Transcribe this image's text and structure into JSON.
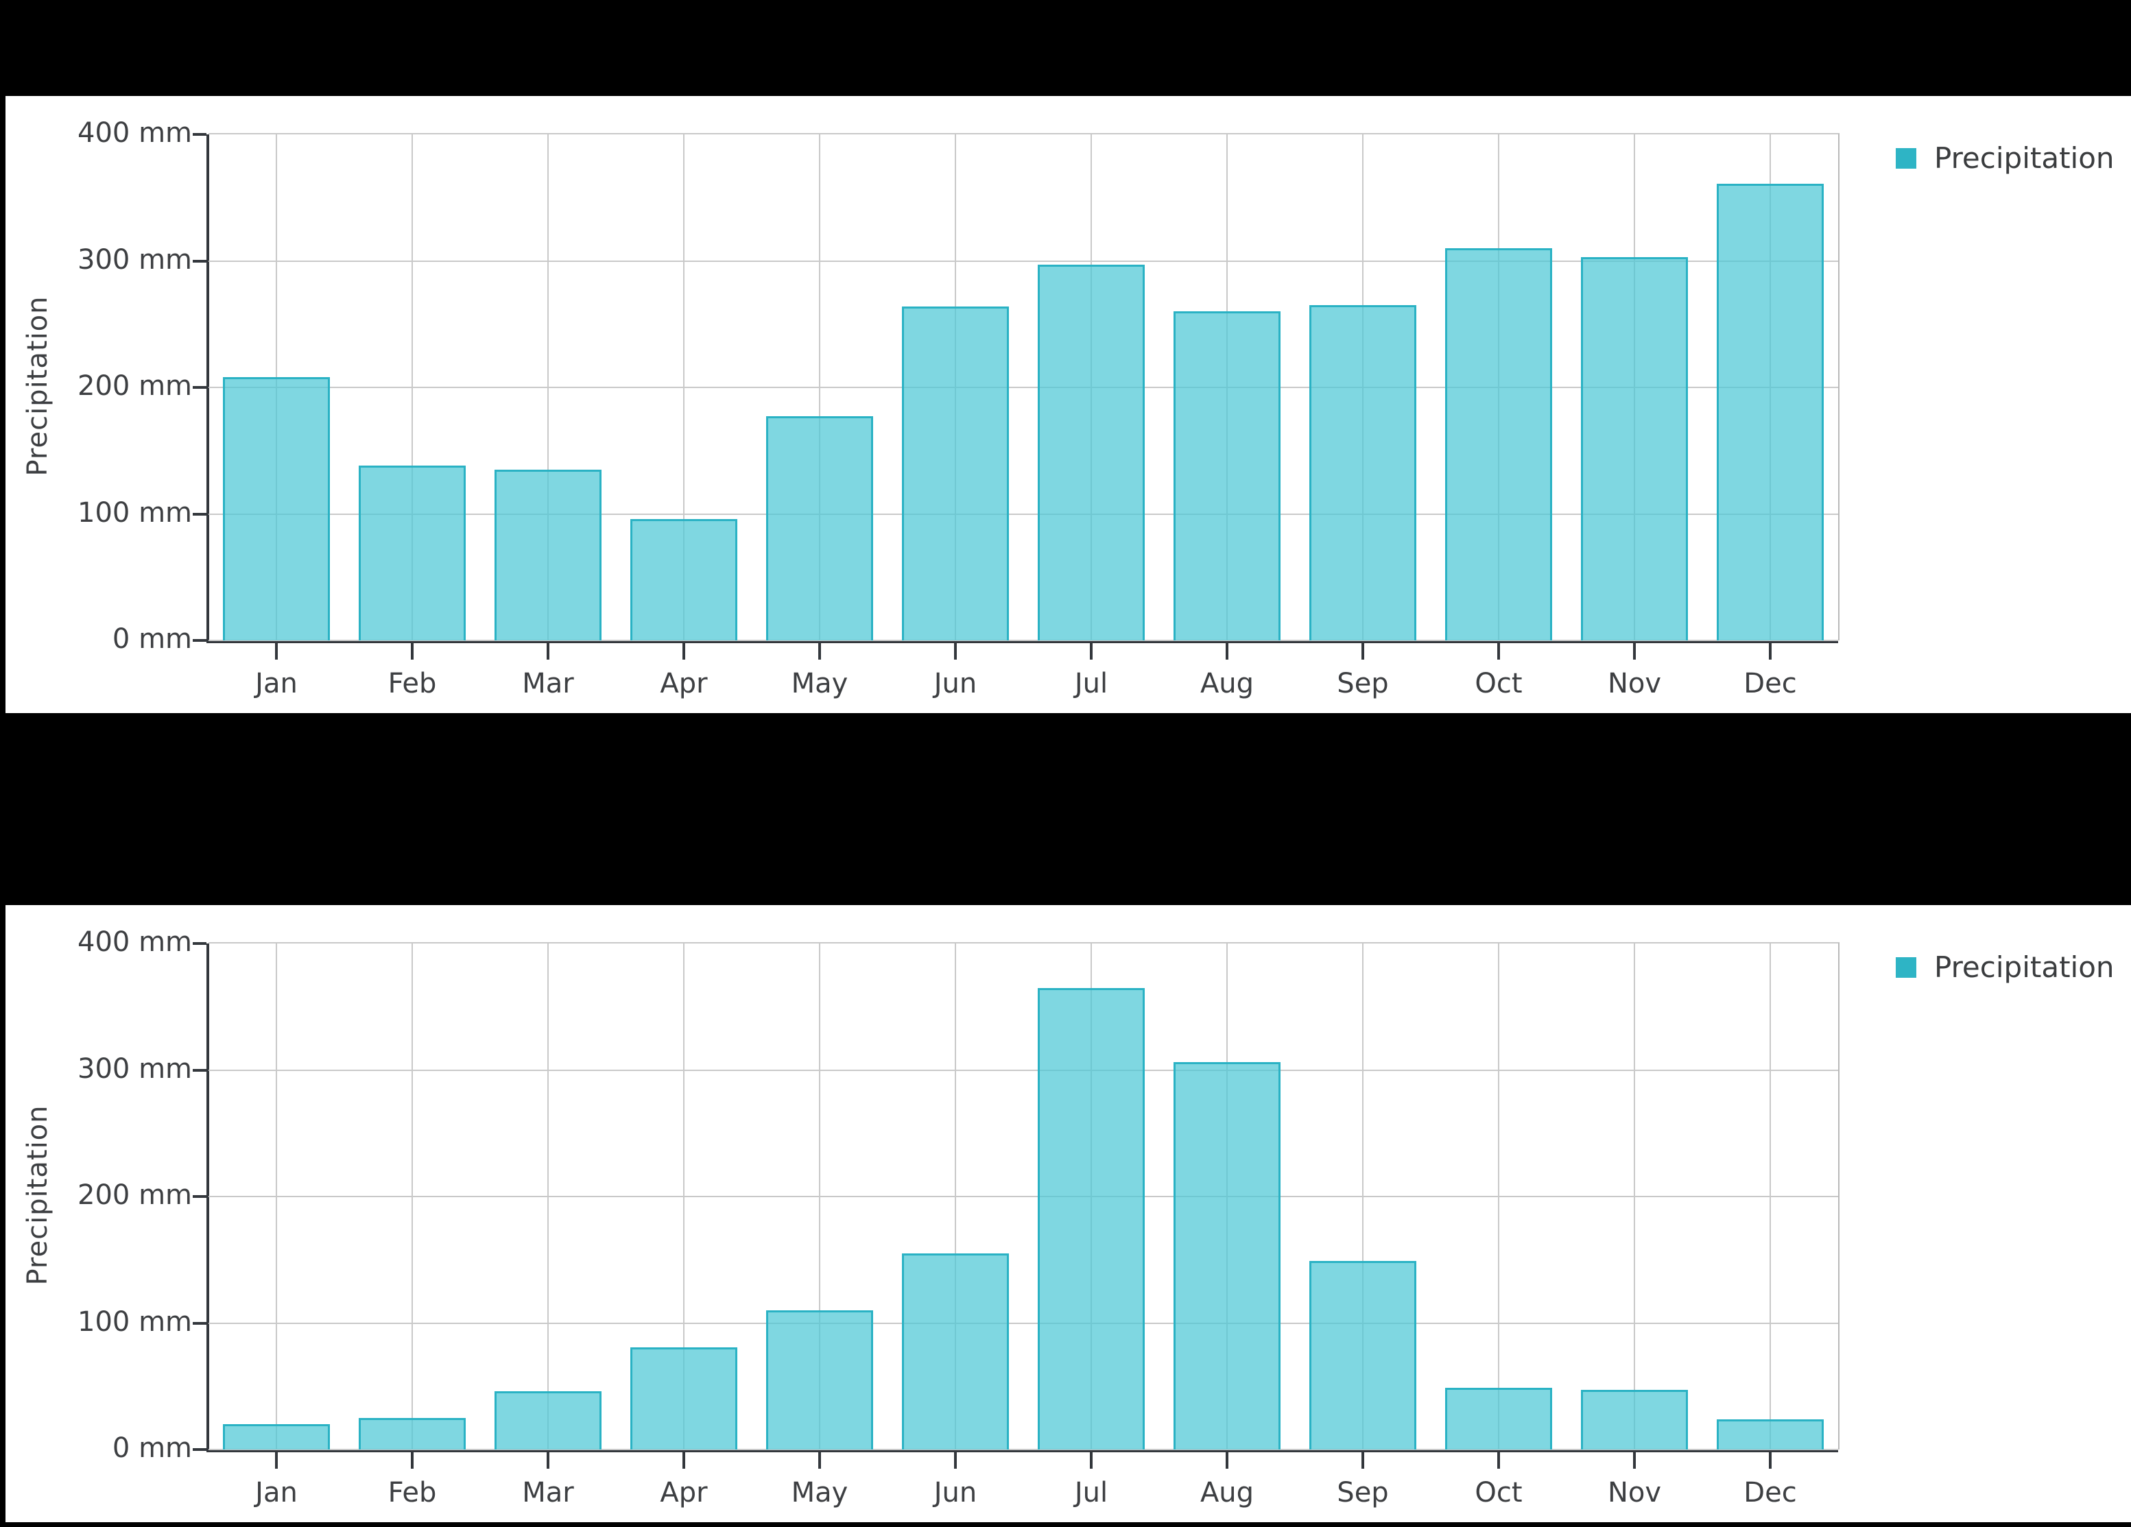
{
  "page": {
    "background": "#000000",
    "panel_background": "#ffffff"
  },
  "colors": {
    "bar_fill": "#85d8e1",
    "bar_stroke": "#2ab2c4",
    "legend_marker": "#2eb4c5",
    "grid_line": "#c9c9c9",
    "axis_line": "#33373c",
    "text": "#3d3f42"
  },
  "chart_data": [
    {
      "type": "bar",
      "title": "",
      "xlabel": "",
      "ylabel": "Precipitation",
      "legend": "Precipitation",
      "legend_position": "top-right",
      "grid": true,
      "unit": "mm",
      "ylim": [
        0,
        400
      ],
      "y_ticks": [
        "400 mm",
        "300 mm",
        "200 mm",
        "100 mm",
        "0 mm"
      ],
      "categories": [
        "Jan",
        "Feb",
        "Mar",
        "Apr",
        "May",
        "Jun",
        "Jul",
        "Aug",
        "Sep",
        "Oct",
        "Nov",
        "Dec"
      ],
      "values": [
        208,
        138,
        135,
        96,
        177,
        264,
        297,
        260,
        265,
        310,
        303,
        361
      ]
    },
    {
      "type": "bar",
      "title": "",
      "xlabel": "",
      "ylabel": "Precipitation",
      "legend": "Precipitation",
      "legend_position": "top-right",
      "grid": true,
      "unit": "mm",
      "ylim": [
        0,
        400
      ],
      "y_ticks": [
        "400 mm",
        "300 mm",
        "200 mm",
        "100 mm",
        "0 mm"
      ],
      "categories": [
        "Jan",
        "Feb",
        "Mar",
        "Apr",
        "May",
        "Jun",
        "Jul",
        "Aug",
        "Sep",
        "Oct",
        "Nov",
        "Dec"
      ],
      "values": [
        20,
        25,
        46,
        81,
        110,
        155,
        365,
        306,
        149,
        49,
        47,
        24
      ]
    }
  ]
}
